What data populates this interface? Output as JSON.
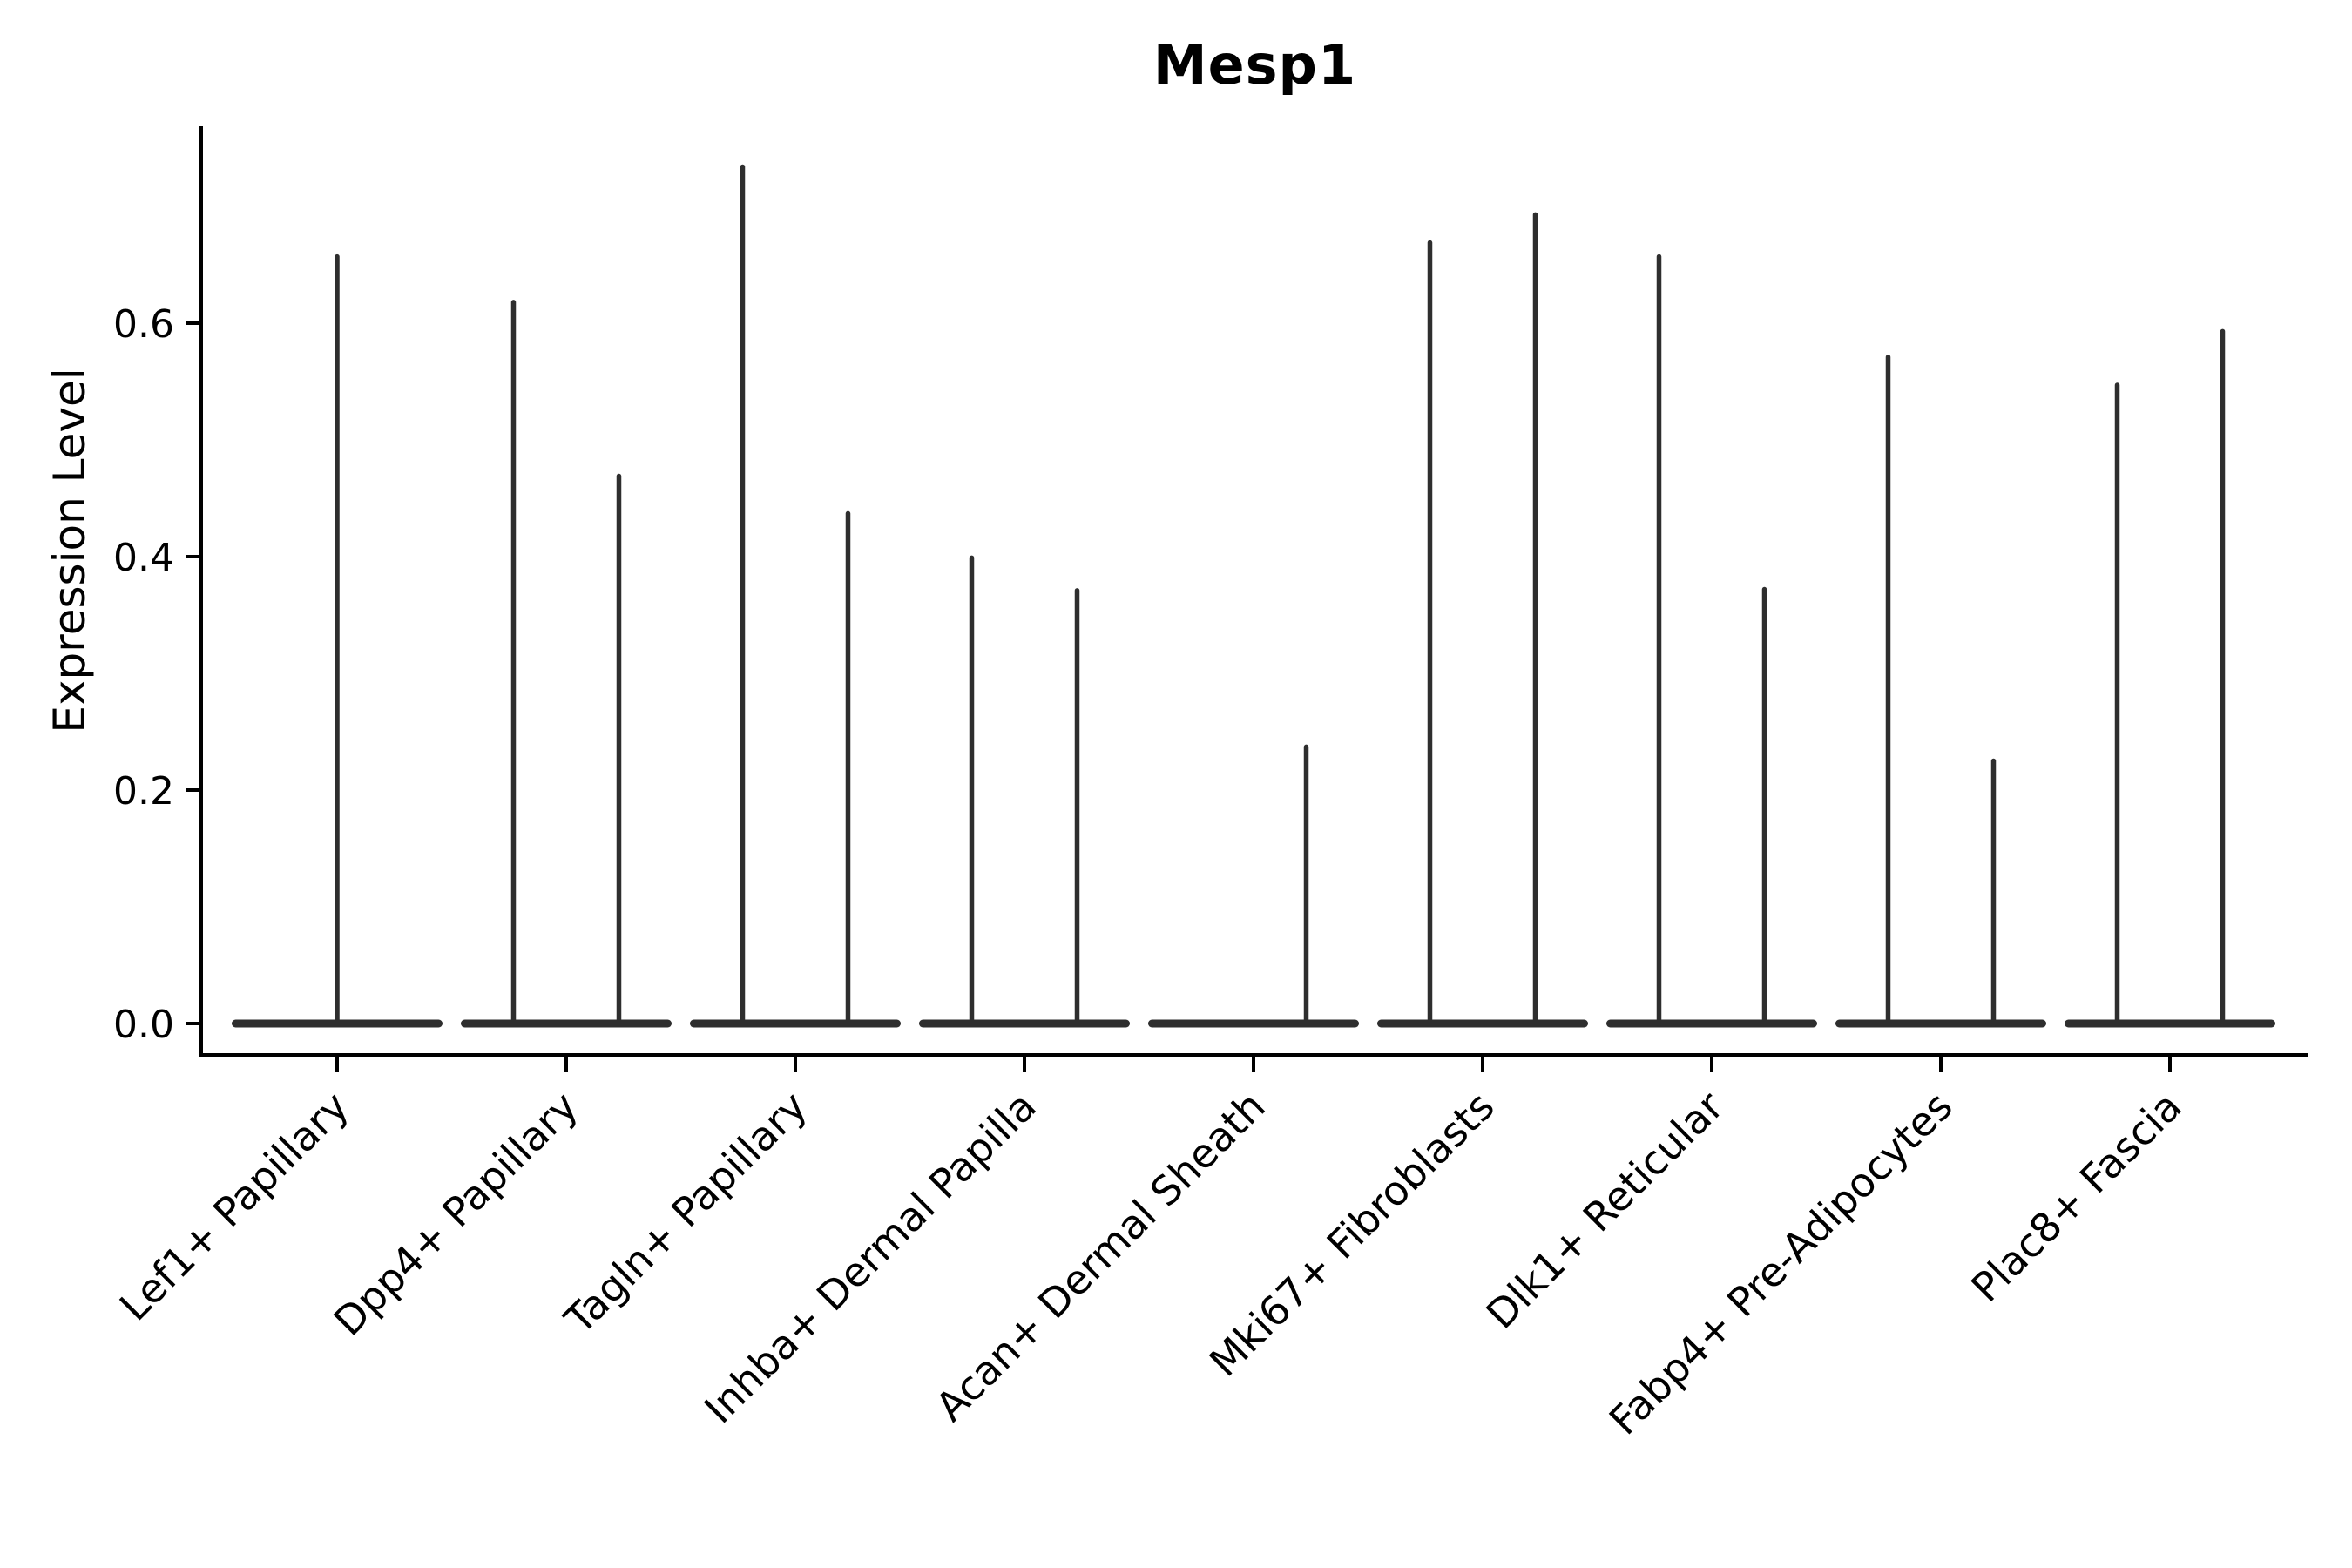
{
  "title": "Mesp1",
  "chart_data": {
    "type": "violin",
    "title": "Mesp1",
    "xlabel": "",
    "ylabel": "Expression Level",
    "ylim": [
      0.0,
      0.77
    ],
    "yticks": [
      0.0,
      0.2,
      0.4,
      0.6
    ],
    "ytick_labels": [
      "0.0",
      "0.2",
      "0.4",
      "0.6"
    ],
    "grid": false,
    "legend": null,
    "violin_color": "#2e2e2e",
    "axis_color": "#000000",
    "description": "Each category shows 1-2 violins; each violin is a flat lens at 0 expression with a thin spike reaching its maximum value. A max of 0.0 means a flat violin with no spike.",
    "categories": [
      {
        "label": "Lef1+ Papillary",
        "violin_maxima": [
          0.657
        ]
      },
      {
        "label": "Dpp4+ Papillary",
        "violin_maxima": [
          0.618,
          0.469
        ]
      },
      {
        "label": "Tagln+ Papillary",
        "violin_maxima": [
          0.734,
          0.437
        ]
      },
      {
        "label": "Inhba+ Dermal Papilla",
        "violin_maxima": [
          0.399,
          0.371
        ]
      },
      {
        "label": "Acan+ Dermal Sheath",
        "violin_maxima": [
          0.0,
          0.237
        ]
      },
      {
        "label": "Mki67+ Fibroblasts",
        "violin_maxima": [
          0.669,
          0.693
        ]
      },
      {
        "label": "Dlk1+ Reticular",
        "violin_maxima": [
          0.657,
          0.372
        ]
      },
      {
        "label": "Fabp4+ Pre-Adipocytes",
        "violin_maxima": [
          0.571,
          0.225
        ]
      },
      {
        "label": "Plac8+ Fascia",
        "violin_maxima": [
          0.547,
          0.593
        ]
      }
    ]
  }
}
